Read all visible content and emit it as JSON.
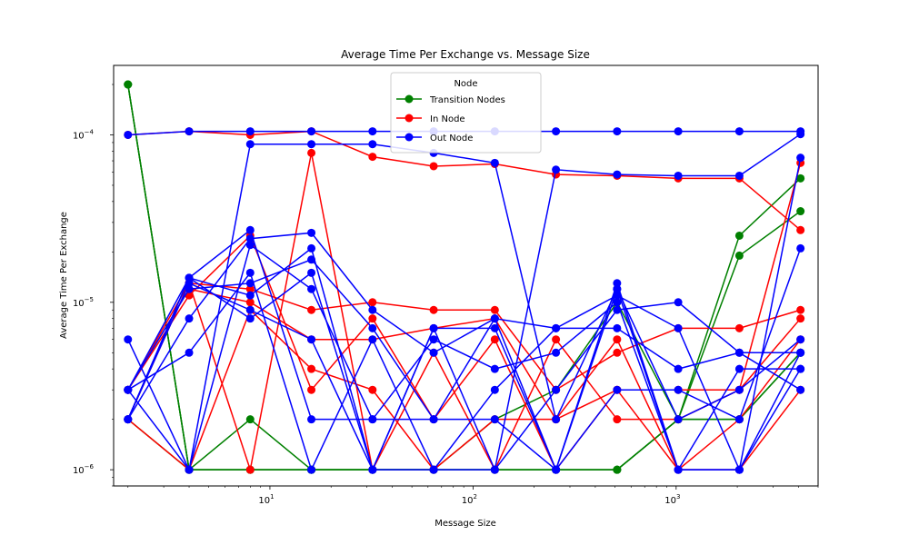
{
  "chart_data": {
    "type": "line",
    "title": "Average Time Per Exchange vs. Message Size",
    "xlabel": "Message Size",
    "ylabel": "Average Time Per Exchange",
    "xscale": "log",
    "yscale": "log",
    "xlim": [
      1.7,
      5000
    ],
    "ylim": [
      8e-07,
      0.00026
    ],
    "x_ticks": [
      {
        "value": 10,
        "base": "10",
        "exp": "1"
      },
      {
        "value": 100,
        "base": "10",
        "exp": "2"
      },
      {
        "value": 1000,
        "base": "10",
        "exp": "3"
      }
    ],
    "y_ticks": [
      {
        "value": 1e-06,
        "base": "10",
        "exp": "−6"
      },
      {
        "value": 1e-05,
        "base": "10",
        "exp": "−5"
      },
      {
        "value": 0.0001,
        "base": "10",
        "exp": "−4"
      }
    ],
    "grid": false,
    "legend": {
      "title": "Node",
      "placement": "top-center",
      "entries": [
        {
          "label": "Transition Nodes",
          "color": "#008000"
        },
        {
          "label": "In Node",
          "color": "#ff0000"
        },
        {
          "label": "Out Node",
          "color": "#0000ff"
        }
      ]
    },
    "x": [
      2,
      4,
      8,
      16,
      32,
      64,
      128,
      256,
      512,
      1024,
      2048,
      4096
    ],
    "series": [
      {
        "name": "Transition Nodes",
        "color": "#008000",
        "values": [
          0.0002,
          1e-06,
          1e-06,
          1e-06,
          1e-06,
          1e-06,
          1e-06,
          1e-06,
          1e-06,
          2e-06,
          2.5e-05,
          5.5e-05
        ]
      },
      {
        "name": "Transition Nodes",
        "color": "#008000",
        "values": [
          0.0002,
          1e-06,
          2e-06,
          1e-06,
          1e-06,
          1e-06,
          1e-06,
          1e-06,
          1e-06,
          2e-06,
          1.9e-05,
          3.5e-05
        ]
      },
      {
        "name": "Transition Nodes",
        "color": "#008000",
        "values": [
          0.0002,
          1e-06,
          1e-06,
          1e-06,
          1e-06,
          1e-06,
          1e-06,
          1e-06,
          1e-06,
          2e-06,
          2e-06,
          5e-06
        ]
      },
      {
        "name": "Transition Nodes",
        "color": "#008000",
        "values": [
          2e-06,
          1e-06,
          1e-06,
          1e-06,
          1e-06,
          1e-06,
          2e-06,
          3e-06,
          1e-05,
          2e-06,
          2e-06,
          5e-06
        ]
      },
      {
        "name": "In Node",
        "color": "#ff0000",
        "values": [
          0.0001,
          0.000105,
          0.0001,
          0.000105,
          7.4e-05,
          6.5e-05,
          6.7e-05,
          5.8e-05,
          5.7e-05,
          5.5e-05,
          5.5e-05,
          2.7e-05
        ]
      },
      {
        "name": "In Node",
        "color": "#ff0000",
        "values": [
          3e-06,
          1.3e-05,
          1.2e-05,
          9e-06,
          1e-05,
          9e-06,
          9e-06,
          3e-06,
          5e-06,
          7e-06,
          7e-06,
          9e-06
        ]
      },
      {
        "name": "In Node",
        "color": "#ff0000",
        "values": [
          3e-06,
          1.2e-05,
          1e-05,
          6e-06,
          6e-06,
          7e-06,
          8e-06,
          2e-06,
          3e-06,
          3e-06,
          3e-06,
          8e-06
        ]
      },
      {
        "name": "In Node",
        "color": "#ff0000",
        "values": [
          2e-06,
          1.3e-05,
          1e-06,
          7.8e-05,
          1e-06,
          5e-06,
          1e-06,
          6e-06,
          2e-06,
          2e-06,
          3e-06,
          6.8e-05
        ]
      },
      {
        "name": "In Node",
        "color": "#ff0000",
        "values": [
          3e-06,
          1.1e-05,
          2.5e-05,
          3e-06,
          8e-06,
          2e-06,
          6e-06,
          1e-06,
          3e-06,
          1e-06,
          1e-06,
          3e-06
        ]
      },
      {
        "name": "In Node",
        "color": "#ff0000",
        "values": [
          2e-06,
          1e-06,
          9e-06,
          4e-06,
          3e-06,
          1e-06,
          2e-06,
          2e-06,
          6e-06,
          1e-06,
          2e-06,
          6e-06
        ]
      },
      {
        "name": "Out Node",
        "color": "#0000ff",
        "values": [
          0.0001,
          0.000105,
          0.000105,
          0.000105,
          0.000105,
          0.000105,
          0.000105,
          0.000105,
          0.000105,
          0.000105,
          0.000105,
          0.000105
        ]
      },
      {
        "name": "Out Node",
        "color": "#0000ff",
        "values": [
          3e-06,
          1.4e-05,
          1.1e-05,
          2.1e-05,
          1e-06,
          7e-06,
          1e-06,
          6.2e-05,
          5.8e-05,
          5.7e-05,
          5.7e-05,
          0.000101
        ]
      },
      {
        "name": "Out Node",
        "color": "#0000ff",
        "values": [
          6e-06,
          1e-06,
          8.8e-05,
          8.8e-05,
          8.8e-05,
          7.8e-05,
          6.8e-05,
          2e-06,
          1.2e-05,
          1e-06,
          1e-06,
          7.3e-05
        ]
      },
      {
        "name": "Out Node",
        "color": "#0000ff",
        "values": [
          2e-06,
          1.4e-05,
          2.7e-05,
          2e-06,
          2e-06,
          2e-06,
          8e-06,
          7e-06,
          7e-06,
          4e-06,
          5e-06,
          3e-06
        ]
      },
      {
        "name": "Out Node",
        "color": "#0000ff",
        "values": [
          2e-06,
          8e-06,
          2.4e-05,
          2.6e-05,
          9e-06,
          5e-06,
          8e-06,
          1e-06,
          1.3e-05,
          1e-06,
          1e-06,
          4e-06
        ]
      },
      {
        "name": "Out Node",
        "color": "#0000ff",
        "values": [
          3e-06,
          5e-06,
          1.5e-05,
          1e-06,
          6e-06,
          1e-06,
          1e-06,
          3e-06,
          9e-06,
          1e-05,
          5e-06,
          5e-06
        ]
      },
      {
        "name": "Out Node",
        "color": "#0000ff",
        "values": [
          2e-06,
          1.4e-05,
          8e-06,
          1.5e-05,
          1e-06,
          7e-06,
          7e-06,
          1e-06,
          3e-06,
          3e-06,
          2e-06,
          2.1e-05
        ]
      },
      {
        "name": "Out Node",
        "color": "#0000ff",
        "values": [
          3e-06,
          1e-06,
          2.2e-05,
          1.2e-05,
          2e-06,
          6e-06,
          4e-06,
          5e-06,
          1e-05,
          1e-06,
          4e-06,
          4e-06
        ]
      },
      {
        "name": "Out Node",
        "color": "#0000ff",
        "values": [
          2e-06,
          1.3e-05,
          9e-06,
          6e-06,
          1e-06,
          1e-06,
          3e-06,
          7e-06,
          1.1e-05,
          7e-06,
          1e-06,
          5e-06
        ]
      },
      {
        "name": "Out Node",
        "color": "#0000ff",
        "values": [
          3e-06,
          1.2e-05,
          1.3e-05,
          1.8e-05,
          7e-06,
          2e-06,
          2e-06,
          1e-06,
          1.2e-05,
          2e-06,
          3e-06,
          6e-06
        ]
      }
    ]
  }
}
